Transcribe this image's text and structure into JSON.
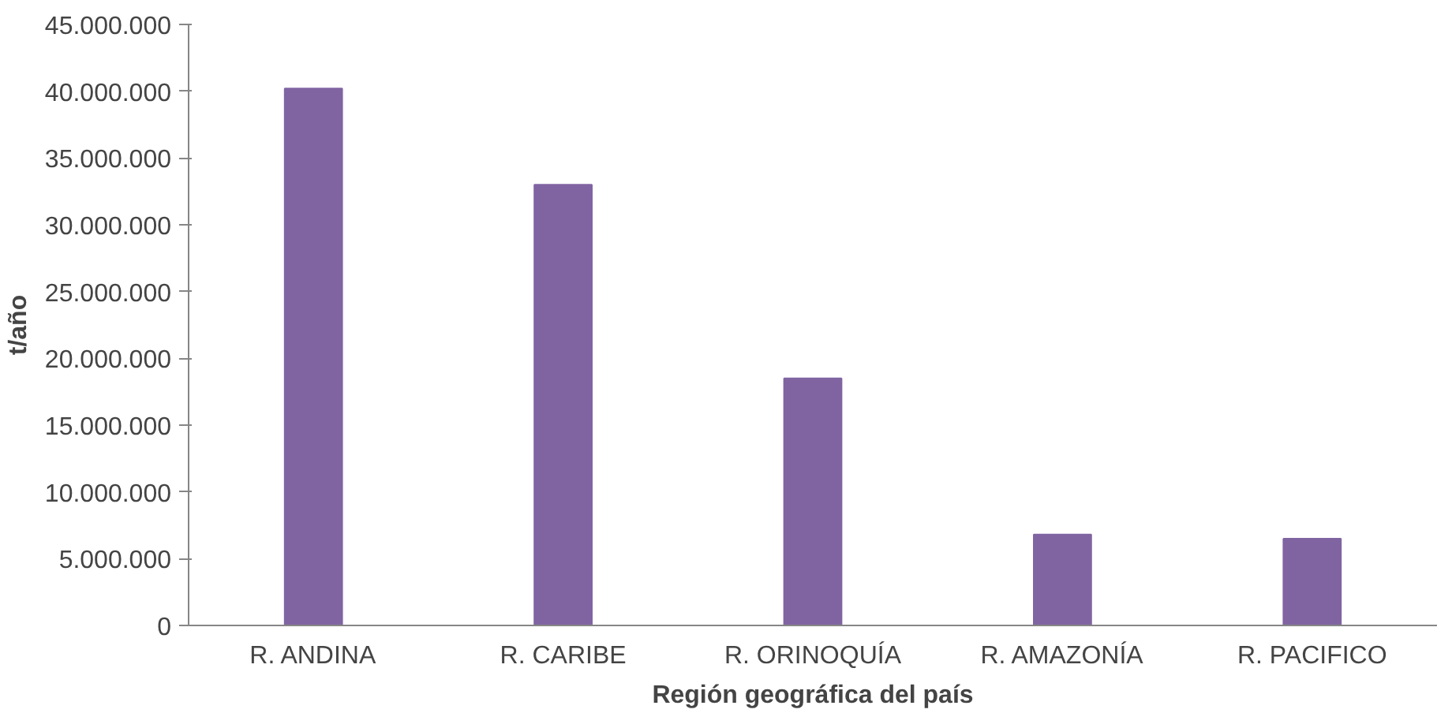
{
  "chart_data": {
    "type": "bar",
    "xlabel": "Región geográfica del país",
    "ylabel": "t/año",
    "categories": [
      "R. ANDINA",
      "R. CARIBE",
      "R. ORINOQUÍA",
      "R. AMAZONÍA",
      "R. PACIFICO"
    ],
    "values": [
      40200000,
      33000000,
      18500000,
      6800000,
      6500000
    ],
    "color": "#8064a2",
    "ylim": [
      0,
      45000000
    ],
    "yticks": [
      0,
      {
        "value": 5000000,
        "label": "5.000.000"
      },
      {
        "value": 10000000,
        "label": "10.000.000"
      },
      {
        "value": 15000000,
        "label": "15.000.000"
      },
      {
        "value": 20000000,
        "label": "20.000.000"
      },
      {
        "value": 25000000,
        "label": "25.000.000"
      },
      {
        "value": 30000000,
        "label": "30.000.000"
      },
      {
        "value": 35000000,
        "label": "35.000.000"
      },
      {
        "value": 40000000,
        "label": "40.000.000"
      },
      {
        "value": 45000000,
        "label": "45.000.000"
      }
    ],
    "grid": false
  }
}
